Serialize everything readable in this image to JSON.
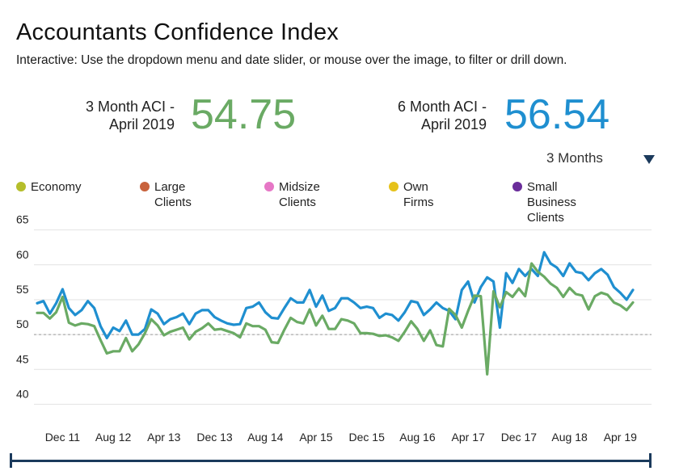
{
  "header": {
    "title": "Accountants Confidence Index",
    "subtitle": "Interactive: Use the dropdown menu and date slider, or mouse over the image, to filter or drill down."
  },
  "kpis": [
    {
      "label_line1": "3 Month ACI -",
      "label_line2": "April 2019",
      "value": "54.75",
      "color": "#6aaa64"
    },
    {
      "label_line1": "6 Month ACI -",
      "label_line2": "April 2019",
      "value": "56.54",
      "color": "#1f8fd0"
    }
  ],
  "dropdown": {
    "selected": "3 Months",
    "icon": "triangle-down-icon"
  },
  "legend": [
    {
      "label": "Economy",
      "color": "#b5be2b"
    },
    {
      "label": "Large Clients",
      "color": "#c8623c"
    },
    {
      "label": "Midsize Clients",
      "color": "#e677c6"
    },
    {
      "label": "Own Firms",
      "color": "#e6c21a"
    },
    {
      "label": "Small Business Clients",
      "label_line1": "Small Business",
      "label_line2": "Clients",
      "color": "#6a2d9a"
    }
  ],
  "chart_data": {
    "type": "line",
    "title": "Accountants Confidence Index",
    "xlabel": "",
    "ylabel": "",
    "ylim": [
      37.5,
      66
    ],
    "yticks": [
      40,
      45,
      50,
      55,
      60,
      65
    ],
    "reference_line": 50,
    "x_tick_labels": [
      "Dec 11",
      "Aug 12",
      "Apr 13",
      "Dec 13",
      "Aug 14",
      "Apr 15",
      "Dec 15",
      "Aug 16",
      "Apr 17",
      "Dec 17",
      "Aug 18",
      "Apr 19"
    ],
    "x_tick_index": [
      4,
      12,
      20,
      28,
      36,
      44,
      52,
      60,
      68,
      76,
      84,
      92
    ],
    "series": [
      {
        "name": "6 Month ACI",
        "color": "#1f8fd0",
        "values": [
          54.5,
          54.8,
          53,
          54.5,
          56.5,
          53.8,
          52.8,
          53.5,
          54.8,
          53.8,
          51.2,
          49.5,
          51,
          50.5,
          52,
          50,
          50,
          50.8,
          53.6,
          53,
          51.5,
          52.2,
          52.5,
          53,
          51.5,
          53,
          53.5,
          53.5,
          52.5,
          52,
          51.6,
          51.4,
          51.5,
          53.8,
          54,
          54.6,
          53.2,
          52.4,
          52.3,
          53.8,
          55.2,
          54.6,
          54.6,
          56.4,
          54,
          55.6,
          53.4,
          53.8,
          55.2,
          55.2,
          54.6,
          53.8,
          54,
          53.8,
          52.4,
          53,
          52.8,
          52,
          53.2,
          54.8,
          54.6,
          52.8,
          53.6,
          54.6,
          53.8,
          53.4,
          52.2,
          56.4,
          57.6,
          54.6,
          56.8,
          58.2,
          57.6,
          51,
          58.8,
          57.4,
          59.4,
          58.4,
          59.4,
          58.4,
          61.8,
          60.2,
          59.6,
          58.4,
          60.2,
          59,
          58.8,
          57.8,
          58.8,
          59.4,
          58.6,
          56.8,
          56,
          55,
          56.4
        ]
      },
      {
        "name": "3 Month ACI",
        "color": "#6aaa64",
        "values": [
          53.1,
          53.1,
          52.3,
          53.2,
          55.4,
          51.7,
          51.3,
          51.6,
          51.5,
          51.2,
          49.2,
          47.3,
          47.6,
          47.6,
          49.5,
          47.6,
          48.6,
          50.2,
          52.2,
          51.3,
          49.9,
          50.4,
          50.7,
          51,
          49.3,
          50.4,
          50.9,
          51.6,
          50.7,
          50.8,
          50.5,
          50.2,
          49.6,
          51.6,
          51.2,
          51.2,
          50.7,
          48.9,
          48.8,
          50.7,
          52.4,
          51.8,
          51.6,
          53.6,
          51.3,
          52.7,
          50.8,
          50.8,
          52.2,
          52,
          51.6,
          50.2,
          50.2,
          50.1,
          49.8,
          49.9,
          49.6,
          49.1,
          50.4,
          51.9,
          50.8,
          49.1,
          50.6,
          48.5,
          48.3,
          53.7,
          52.8,
          51,
          53.4,
          55.6,
          55.5,
          44.3,
          56.2,
          53.9,
          56.1,
          55.4,
          56.6,
          55.5,
          60.2,
          59,
          58.3,
          57.3,
          56.7,
          55.4,
          56.7,
          55.8,
          55.6,
          53.6,
          55.5,
          56,
          55.7,
          54.6,
          54.2,
          53.5,
          54.6
        ]
      }
    ]
  },
  "slider": {
    "icon": "date-range-slider"
  }
}
